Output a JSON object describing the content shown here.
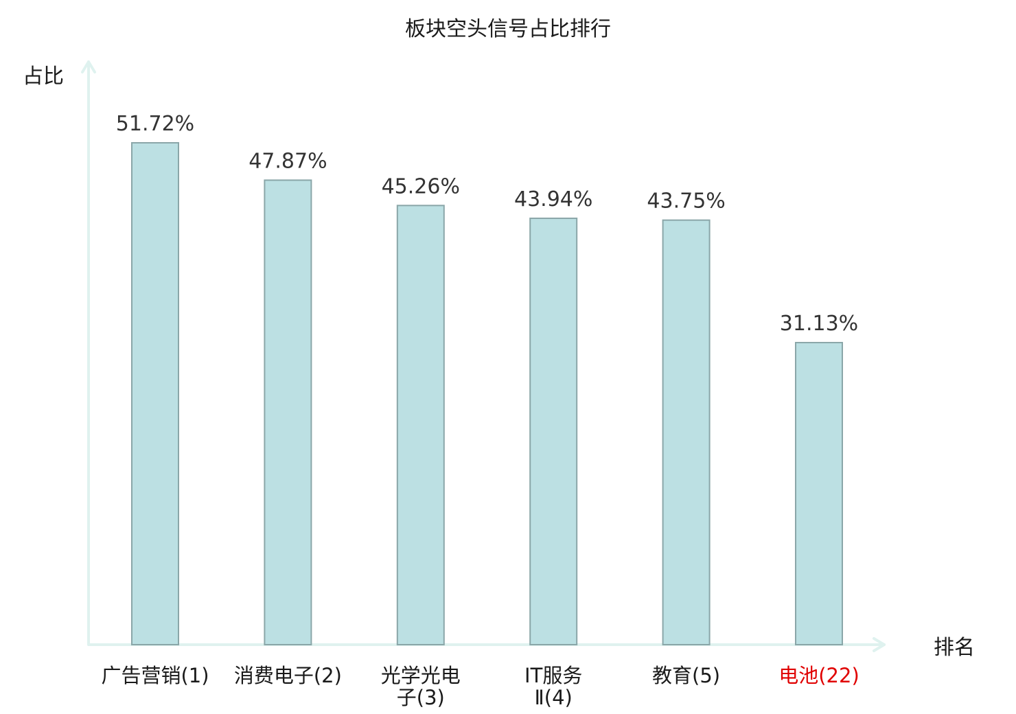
{
  "chart_data": {
    "type": "bar",
    "title": "板块空头信号占比排行",
    "ylabel": "占比",
    "xlabel": "排名",
    "categories": [
      "广告营销(1)",
      "消费电子(2)",
      "光学光电子(3)",
      "IT服务Ⅱ(4)",
      "教育(5)",
      "电池(22)"
    ],
    "category_lines": [
      [
        "广告营销(1)"
      ],
      [
        "消费电子(2)"
      ],
      [
        "光学光电",
        "子(3)"
      ],
      [
        "IT服务",
        "Ⅱ(4)"
      ],
      [
        "教育(5)"
      ],
      [
        "电池(22)"
      ]
    ],
    "values": [
      51.72,
      47.87,
      45.26,
      43.94,
      43.75,
      31.13
    ],
    "value_labels": [
      "51.72%",
      "47.87%",
      "45.26%",
      "43.94%",
      "43.75%",
      "31.13%"
    ],
    "highlight_category": "电池(22)",
    "ylim": [
      0,
      60
    ],
    "grid": false,
    "legend": "none",
    "colors": {
      "bar_fill": "#bce0e3",
      "bar_stroke": "#8aa6a8",
      "axis": "#dff2ef",
      "tick_text": "#1a1a1a",
      "highlight_text": "#e00000"
    }
  }
}
